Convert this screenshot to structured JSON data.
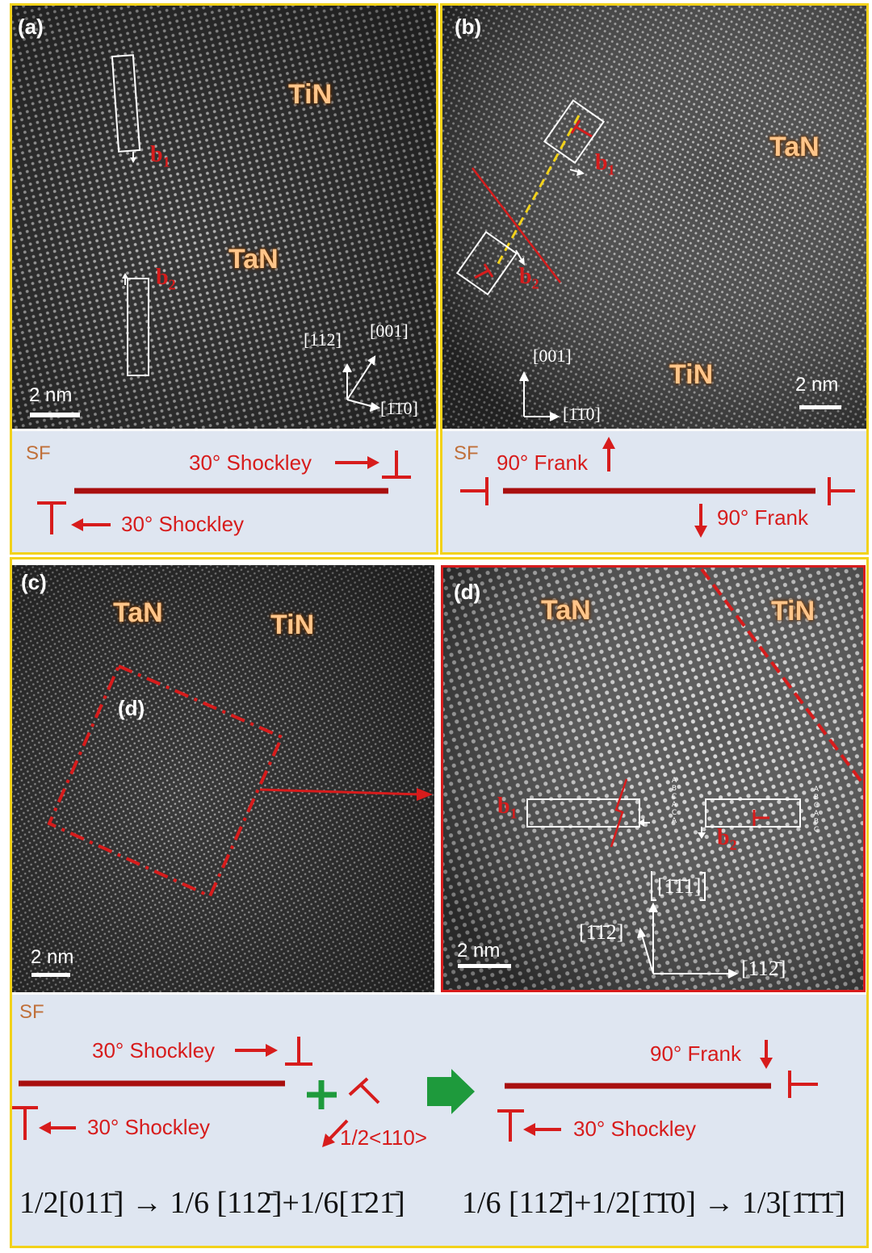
{
  "panels": {
    "a": {
      "label": "(a)",
      "mat_top": "TiN",
      "mat_mid": "TaN",
      "b1": "b",
      "b1_sub": "1",
      "b2": "b",
      "b2_sub": "2",
      "dir_112": "[112]",
      "dir_001": "[001]",
      "dir_110": "[1̄1̄0]",
      "scale": "2 nm"
    },
    "b": {
      "label": "(b)",
      "mat_top": "TaN",
      "mat_bottom": "TiN",
      "b1": "b",
      "b1_sub": "1",
      "b2": "b",
      "b2_sub": "2",
      "dir_001": "[001]",
      "dir_110": "[1̄1̄0]",
      "scale": "2 nm"
    },
    "c": {
      "label": "(c)",
      "mat_left": "TaN",
      "mat_right": "TiN",
      "inset_label": "(d)",
      "scale": "2 nm"
    },
    "d": {
      "label": "(d)",
      "mat_left": "TaN",
      "mat_right": "TiN",
      "b1": "b",
      "b1_sub": "1",
      "b2": "b",
      "b2_sub": "2",
      "stack_left": [
        "A",
        "B",
        "C",
        "A",
        "C",
        "A"
      ],
      "stack_right": [
        "A",
        "B",
        "C",
        "A",
        "B",
        "C"
      ],
      "dir_111": "[1̄1̄1]",
      "dir_112bar": "[1̄1̄2]",
      "dir_112": "[112̄]",
      "scale": "2 nm"
    }
  },
  "schematic_a": {
    "sf": "SF",
    "top": "30° Shockley",
    "bottom": "30° Shockley"
  },
  "schematic_b": {
    "sf": "SF",
    "top": "90° Frank",
    "bottom": "90° Frank"
  },
  "schematic_c": {
    "sf": "SF",
    "left_top": "30° Shockley",
    "left_bottom": "30° Shockley",
    "half_110": "1/2<110>",
    "right_top": "90° Frank",
    "right_bottom": "30° Shockley",
    "eq_left": "1/2[011̄] → 1/6 [112̄]+1/6[1̄21̄]",
    "eq_right": "1/6 [112̄]+1/2[1̄1̄0] → 1/3[1̄1̄1̄]"
  },
  "colors": {
    "frame": "#f2d21a",
    "red": "#d71c1c",
    "dark_red": "#a80f0f",
    "green": "#1e9a3c",
    "panel_bg": "#dfe6f1"
  }
}
